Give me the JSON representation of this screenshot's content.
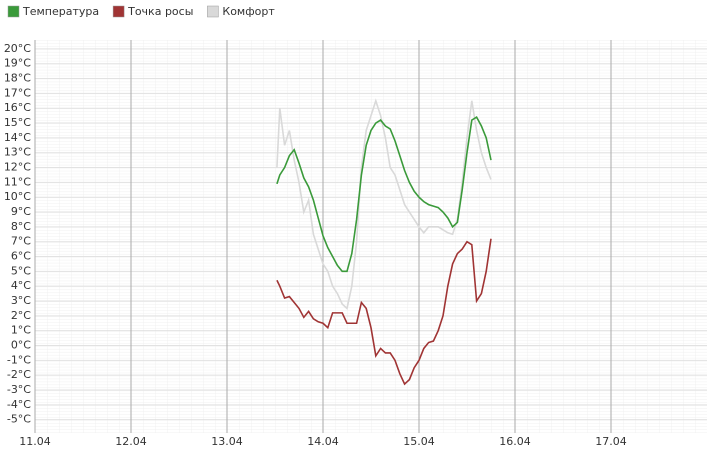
{
  "chart_data": {
    "type": "line",
    "x": [
      13.52,
      13.55,
      13.6,
      13.65,
      13.7,
      13.75,
      13.8,
      13.85,
      13.9,
      13.95,
      14.0,
      14.05,
      14.1,
      14.15,
      14.2,
      14.25,
      14.3,
      14.35,
      14.4,
      14.45,
      14.5,
      14.55,
      14.6,
      14.65,
      14.7,
      14.75,
      14.8,
      14.85,
      14.9,
      14.95,
      15.0,
      15.05,
      15.1,
      15.15,
      15.2,
      15.25,
      15.3,
      15.35,
      15.4,
      15.45,
      15.5,
      15.55,
      15.6,
      15.65,
      15.7,
      15.75
    ],
    "series": [
      {
        "name": "Температура",
        "color": "#3a9a3a",
        "values": [
          10.9,
          11.5,
          12.0,
          12.8,
          13.2,
          12.3,
          11.3,
          10.7,
          9.8,
          8.6,
          7.4,
          6.6,
          6.0,
          5.4,
          5.0,
          5.0,
          6.2,
          8.5,
          11.5,
          13.5,
          14.5,
          15.0,
          15.2,
          14.8,
          14.6,
          13.8,
          12.8,
          11.8,
          11.0,
          10.4,
          10.0,
          9.7,
          9.5,
          9.4,
          9.3,
          9.0,
          8.6,
          8.0,
          8.3,
          10.5,
          13.0,
          15.2,
          15.4,
          14.8,
          14.0,
          12.5
        ]
      },
      {
        "name": "Точка росы",
        "color": "#a03434",
        "values": [
          4.4,
          4.0,
          3.2,
          3.3,
          2.9,
          2.5,
          1.9,
          2.3,
          1.8,
          1.6,
          1.5,
          1.2,
          2.2,
          2.2,
          2.2,
          1.5,
          1.5,
          1.5,
          2.9,
          2.5,
          1.2,
          -0.7,
          -0.2,
          -0.5,
          -0.5,
          -1.0,
          -1.9,
          -2.6,
          -2.3,
          -1.5,
          -1.0,
          -0.2,
          0.2,
          0.3,
          1.0,
          2.0,
          4.0,
          5.5,
          6.2,
          6.5,
          7.0,
          6.8,
          3.0,
          3.5,
          5.0,
          7.2
        ]
      },
      {
        "name": "Комфорт",
        "color": "#d9d9d9",
        "values": [
          12.0,
          16.0,
          13.5,
          14.5,
          12.5,
          11.0,
          9.0,
          9.8,
          7.5,
          6.5,
          5.5,
          5.0,
          4.0,
          3.5,
          2.8,
          2.5,
          4.0,
          7.0,
          12.0,
          14.5,
          15.5,
          16.5,
          15.5,
          14.0,
          12.0,
          11.5,
          10.5,
          9.5,
          9.0,
          8.5,
          8.0,
          7.6,
          8.0,
          8.0,
          8.0,
          7.8,
          7.6,
          7.5,
          8.5,
          11.0,
          14.0,
          16.5,
          14.5,
          13.0,
          12.0,
          11.2
        ]
      }
    ],
    "xlim": [
      11,
      18
    ],
    "xticks": [
      {
        "value": 11,
        "label": "11.04"
      },
      {
        "value": 12,
        "label": "12.04"
      },
      {
        "value": 13,
        "label": "13.04"
      },
      {
        "value": 14,
        "label": "14.04"
      },
      {
        "value": 15,
        "label": "15.04"
      },
      {
        "value": 16,
        "label": "16.04"
      },
      {
        "value": 17,
        "label": "17.04"
      }
    ],
    "ylim": [
      -5.9,
      20.6
    ],
    "yticks": [
      {
        "value": 20,
        "label": "20°C"
      },
      {
        "value": 19,
        "label": "19°C"
      },
      {
        "value": 18,
        "label": "18°C"
      },
      {
        "value": 17,
        "label": "17°C"
      },
      {
        "value": 16,
        "label": "16°C"
      },
      {
        "value": 15,
        "label": "15°C"
      },
      {
        "value": 14,
        "label": "14°C"
      },
      {
        "value": 13,
        "label": "13°C"
      },
      {
        "value": 12,
        "label": "12°C"
      },
      {
        "value": 11,
        "label": "11°C"
      },
      {
        "value": 10,
        "label": "10°C"
      },
      {
        "value": 9,
        "label": "9°C"
      },
      {
        "value": 8,
        "label": "8°C"
      },
      {
        "value": 7,
        "label": "7°C"
      },
      {
        "value": 6,
        "label": "6°C"
      },
      {
        "value": 5,
        "label": "5°C"
      },
      {
        "value": 4,
        "label": "4°C"
      },
      {
        "value": 3,
        "label": "3°C"
      },
      {
        "value": 2,
        "label": "2°C"
      },
      {
        "value": 1,
        "label": "1°C"
      },
      {
        "value": 0,
        "label": "0°C"
      },
      {
        "value": -1,
        "label": "-1°C"
      },
      {
        "value": -2,
        "label": "-2°C"
      },
      {
        "value": -3,
        "label": "-3°C"
      },
      {
        "value": -4,
        "label": "-4°C"
      },
      {
        "value": -5,
        "label": "-5°C"
      }
    ],
    "grid": true
  }
}
